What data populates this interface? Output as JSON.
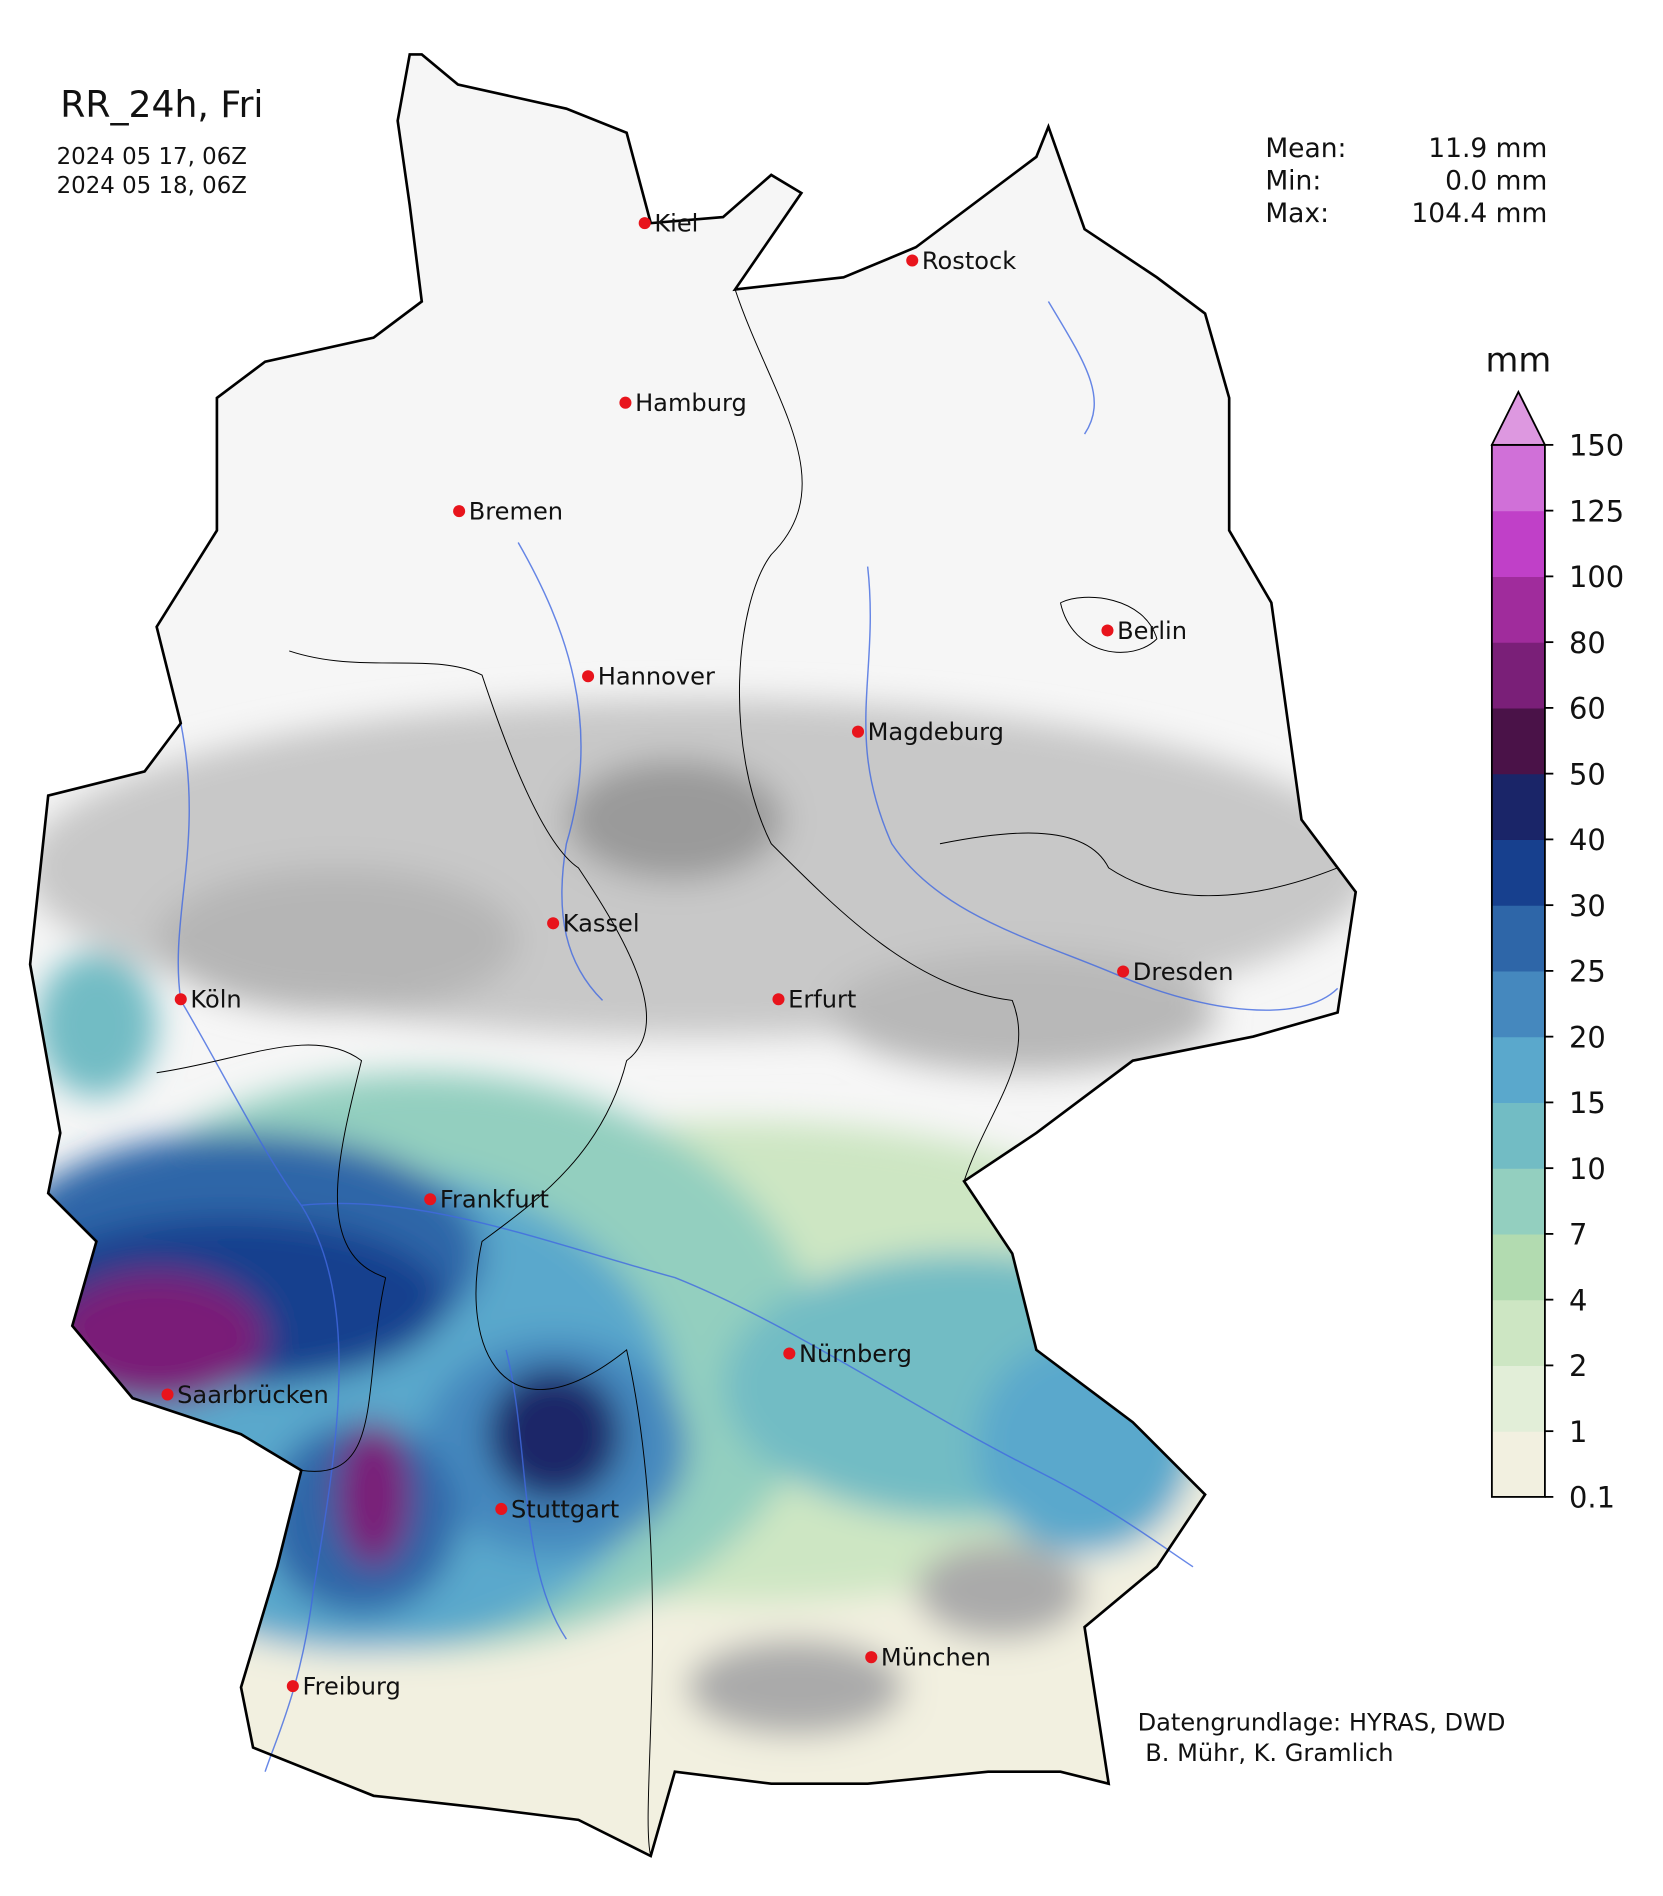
{
  "header": {
    "title": "RR_24h, Fri",
    "start": "2024 05 17, 06Z",
    "end": "2024 05 18, 06Z"
  },
  "stats": [
    {
      "label": "Mean:",
      "value": "11.9 mm"
    },
    {
      "label": "Min:",
      "value": "0.0 mm"
    },
    {
      "label": "Max:",
      "value": "104.4 mm"
    }
  ],
  "cities": [
    "Kiel",
    "Rostock",
    "Hamburg",
    "Bremen",
    "Berlin",
    "Hannover",
    "Magdeburg",
    "Kassel",
    "Köln",
    "Erfurt",
    "Dresden",
    "Frankfurt",
    "Nürnberg",
    "Saarbrücken",
    "Stuttgart",
    "Freiburg",
    "München"
  ],
  "colorbar": {
    "unit": "mm",
    "ticks": [
      0.1,
      1,
      2,
      4,
      7,
      10,
      15,
      20,
      25,
      30,
      40,
      50,
      60,
      80,
      100,
      125,
      150
    ],
    "colors": [
      "#f2f0e0",
      "#e2eed8",
      "#cde6c3",
      "#b2dbb0",
      "#93cfbf",
      "#72bcc4",
      "#5aa8cc",
      "#4588be",
      "#2e66a8",
      "#17408e",
      "#1a2568",
      "#4a1248",
      "#7a1f78",
      "#a02c9c",
      "#c040c8",
      "#d070d8"
    ],
    "extend_color": "#dd98e0"
  },
  "credits": [
    "Datengrundlage: HYRAS, DWD",
    " B. Mühr, K. Gramlich"
  ]
}
